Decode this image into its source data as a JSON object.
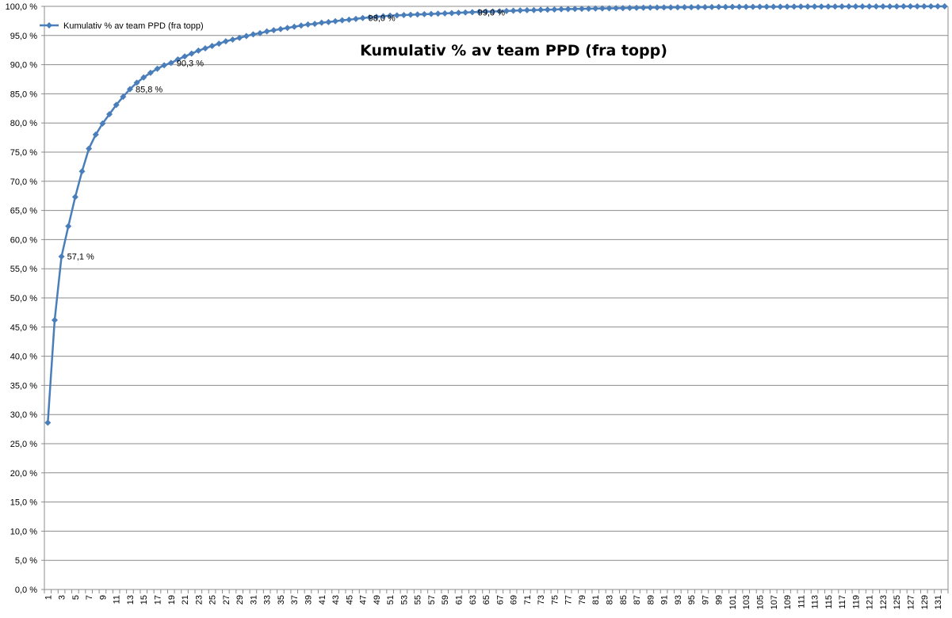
{
  "chart_data": {
    "type": "line",
    "title": "Kumulativ % av team PPD (fra topp)",
    "legend": {
      "position": "top-left",
      "entries": [
        "Kumulativ % av team PPD (fra topp)"
      ]
    },
    "grid": true,
    "ylim": [
      0,
      100
    ],
    "y_tick_labels": [
      "0,0 %",
      "5,0 %",
      "10,0 %",
      "15,0 %",
      "20,0 %",
      "25,0 %",
      "30,0 %",
      "35,0 %",
      "40,0 %",
      "45,0 %",
      "50,0 %",
      "55,0 %",
      "60,0 %",
      "65,0 %",
      "70,0 %",
      "75,0 %",
      "80,0 %",
      "85,0 %",
      "90,0 %",
      "95,0 %",
      "100,0 %"
    ],
    "x_tick_labels": [
      "1",
      "3",
      "5",
      "7",
      "9",
      "11",
      "13",
      "15",
      "17",
      "19",
      "21",
      "23",
      "25",
      "27",
      "29",
      "31",
      "33",
      "35",
      "37",
      "39",
      "41",
      "43",
      "45",
      "47",
      "49",
      "51",
      "53",
      "55",
      "57",
      "59",
      "61",
      "63",
      "65",
      "67",
      "69",
      "71",
      "73",
      "75",
      "77",
      "79",
      "81",
      "83",
      "85",
      "87",
      "89",
      "91",
      "93",
      "95",
      "97",
      "99",
      "101",
      "103",
      "105",
      "107",
      "109",
      "111",
      "113",
      "115",
      "117",
      "119",
      "121",
      "123",
      "125",
      "127",
      "129",
      "131"
    ],
    "x": [
      1,
      2,
      3,
      4,
      5,
      6,
      7,
      8,
      9,
      10,
      11,
      12,
      13,
      14,
      15,
      16,
      17,
      18,
      19,
      20,
      21,
      22,
      23,
      24,
      25,
      26,
      27,
      28,
      29,
      30,
      31,
      32,
      33,
      34,
      35,
      36,
      37,
      38,
      39,
      40,
      41,
      42,
      43,
      44,
      45,
      46,
      47,
      48,
      49,
      50,
      51,
      52,
      53,
      54,
      55,
      56,
      57,
      58,
      59,
      60,
      61,
      62,
      63,
      64,
      65,
      66,
      67,
      68,
      69,
      70,
      71,
      72,
      73,
      74,
      75,
      76,
      77,
      78,
      79,
      80,
      81,
      82,
      83,
      84,
      85,
      86,
      87,
      88,
      89,
      90,
      91,
      92,
      93,
      94,
      95,
      96,
      97,
      98,
      99,
      100,
      101,
      102,
      103,
      104,
      105,
      106,
      107,
      108,
      109,
      110,
      111,
      112,
      113,
      114,
      115,
      116,
      117,
      118,
      119,
      120,
      121,
      122,
      123,
      124,
      125,
      126,
      127,
      128,
      129,
      130,
      131,
      132
    ],
    "series": [
      {
        "name": "Kumulativ % av team PPD (fra topp)",
        "color": "#4a7ebb",
        "values": [
          28.6,
          46.2,
          57.1,
          62.3,
          67.3,
          71.7,
          75.6,
          78.0,
          79.9,
          81.5,
          83.1,
          84.5,
          85.8,
          86.9,
          87.8,
          88.6,
          89.3,
          89.9,
          90.3,
          90.9,
          91.4,
          91.9,
          92.4,
          92.8,
          93.2,
          93.6,
          94.0,
          94.3,
          94.6,
          94.9,
          95.2,
          95.4,
          95.7,
          95.9,
          96.1,
          96.3,
          96.5,
          96.7,
          96.9,
          97.0,
          97.2,
          97.3,
          97.45,
          97.6,
          97.7,
          97.85,
          98.0,
          98.1,
          98.2,
          98.3,
          98.4,
          98.45,
          98.5,
          98.55,
          98.6,
          98.65,
          98.7,
          98.75,
          98.8,
          98.85,
          98.9,
          98.95,
          99.0,
          99.05,
          99.1,
          99.12,
          99.15,
          99.2,
          99.25,
          99.3,
          99.33,
          99.36,
          99.4,
          99.43,
          99.46,
          99.5,
          99.52,
          99.55,
          99.58,
          99.6,
          99.62,
          99.64,
          99.66,
          99.68,
          99.7,
          99.72,
          99.74,
          99.76,
          99.78,
          99.8,
          99.81,
          99.82,
          99.83,
          99.84,
          99.85,
          99.86,
          99.87,
          99.88,
          99.89,
          99.9,
          99.91,
          99.91,
          99.92,
          99.92,
          99.93,
          99.93,
          99.94,
          99.94,
          99.95,
          99.95,
          99.96,
          99.96,
          99.96,
          99.97,
          99.97,
          99.97,
          99.98,
          99.98,
          99.98,
          99.98,
          99.99,
          99.99,
          99.99,
          99.99,
          99.99,
          100.0,
          100.0,
          100.0,
          100.0,
          100.0,
          100.0,
          100.0
        ]
      }
    ],
    "data_labels": [
      {
        "x": 3,
        "text": "57,1 %"
      },
      {
        "x": 13,
        "text": "85,8 %"
      },
      {
        "x": 19,
        "text": "90,3 %"
      },
      {
        "x": 47,
        "text": "98,0 %"
      },
      {
        "x": 63,
        "text": "99,0 %"
      }
    ]
  }
}
